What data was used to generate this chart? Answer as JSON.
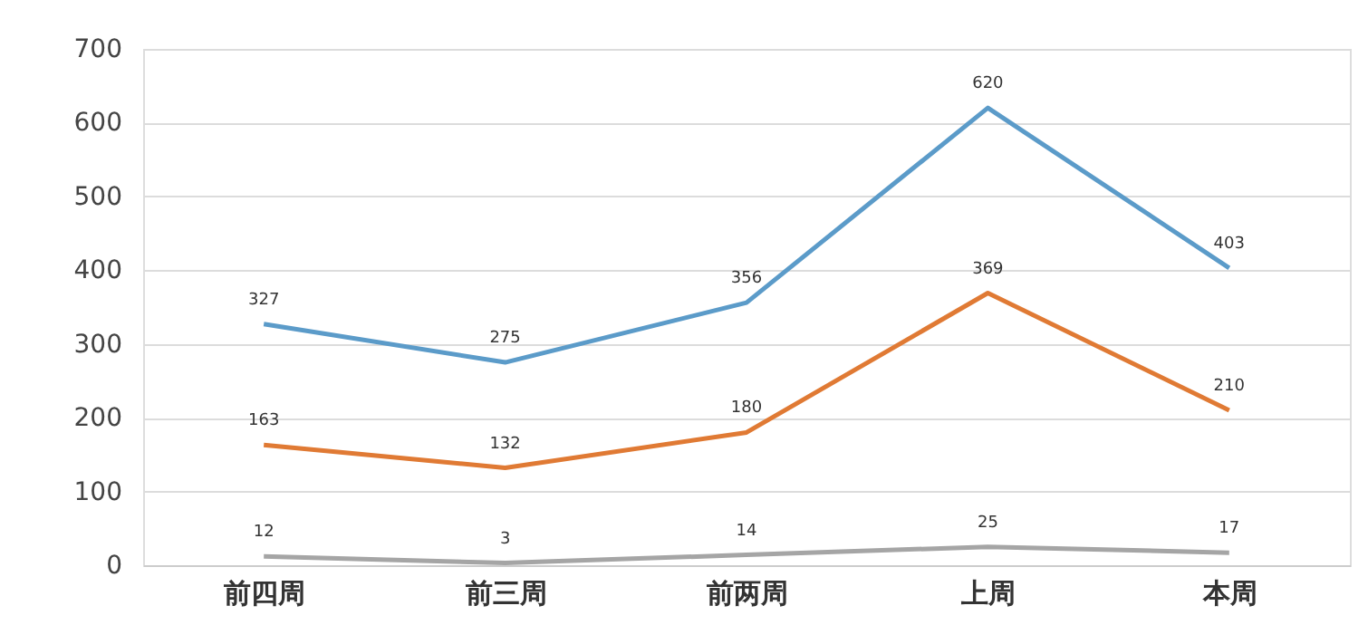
{
  "chart_data": {
    "type": "line",
    "categories": [
      "前四周",
      "前三周",
      "前两周",
      "上周",
      "本周"
    ],
    "series": [
      {
        "color": "#5b9bc9",
        "values": [
          327,
          275,
          356,
          620,
          403
        ]
      },
      {
        "color": "#e07a34",
        "values": [
          163,
          132,
          180,
          369,
          210
        ]
      },
      {
        "color": "#a5a5a5",
        "values": [
          12,
          3,
          14,
          25,
          17
        ]
      }
    ],
    "ylim": [
      0,
      700
    ],
    "yticks": [
      0,
      100,
      200,
      300,
      400,
      500,
      600,
      700
    ],
    "grid": "y",
    "data_labels": true,
    "legend": false,
    "marker": "none",
    "line_style": "solid"
  }
}
